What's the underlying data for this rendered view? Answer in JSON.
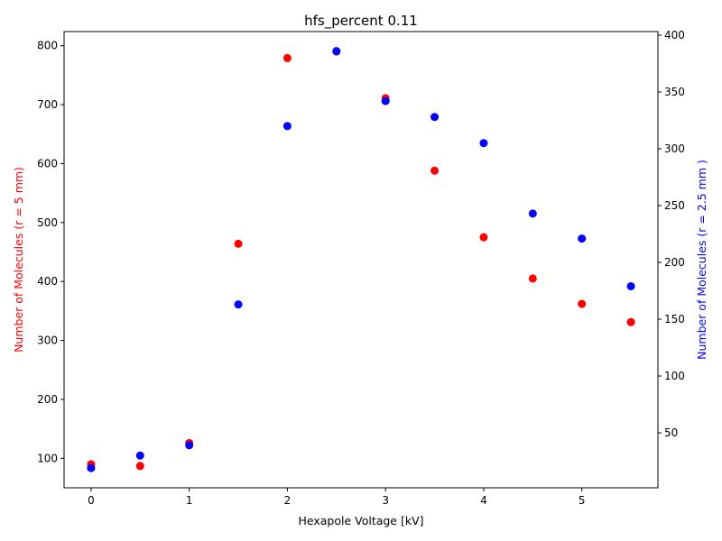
{
  "chart_data": {
    "type": "scatter",
    "title": "hfs_percent 0.11",
    "xlabel": "Hexapole Voltage [kV]",
    "xlim": [
      -0.275,
      5.775
    ],
    "xticks": [
      "0",
      "1",
      "2",
      "3",
      "4",
      "5"
    ],
    "x": [
      0,
      0.5,
      1.0,
      1.5,
      2.0,
      2.5,
      3.0,
      3.5,
      4.0,
      4.5,
      5.0,
      5.5
    ],
    "grid": false,
    "series": [
      {
        "name": "",
        "axis": "left",
        "color": "#ff0000",
        "ylabel": "Number of Molecules (r = 5 mm)",
        "ylim": [
          50,
          824
        ],
        "yticks": [
          "100",
          "200",
          "300",
          "400",
          "500",
          "600",
          "700",
          "800"
        ],
        "values": [
          90,
          87,
          126,
          464,
          779,
          790,
          711,
          588,
          475,
          405,
          362,
          331
        ]
      },
      {
        "name": "",
        "axis": "right",
        "color": "#0000ff",
        "ylabel": "Number of Molecules (r = 2.5 mm )",
        "ylim": [
          1.6,
          403.2
        ],
        "yticks": [
          "50",
          "100",
          "150",
          "200",
          "250",
          "300",
          "350",
          "400"
        ],
        "values": [
          19,
          30,
          39,
          163,
          320,
          386,
          342,
          328,
          305,
          243,
          221,
          179
        ]
      }
    ]
  }
}
